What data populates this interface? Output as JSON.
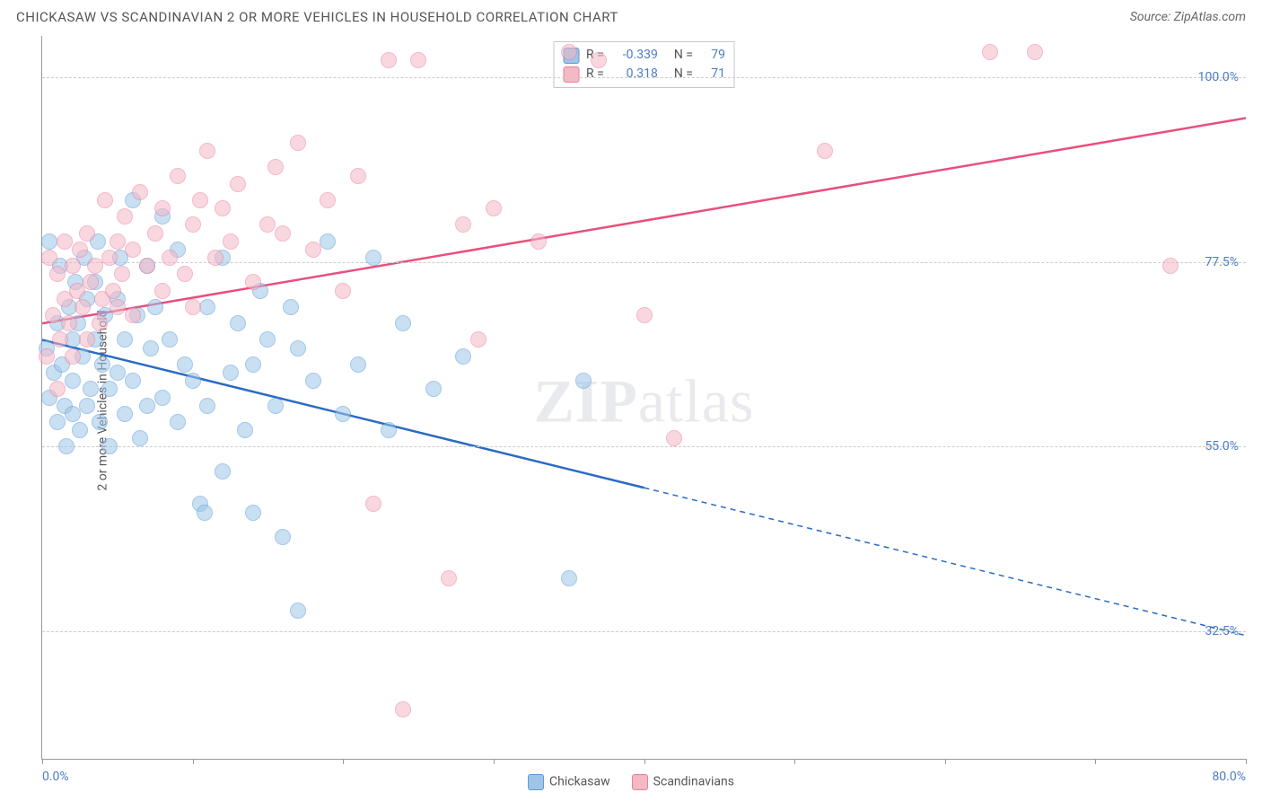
{
  "header": {
    "title": "CHICKASAW VS SCANDINAVIAN 2 OR MORE VEHICLES IN HOUSEHOLD CORRELATION CHART",
    "source": "Source: ZipAtlas.com"
  },
  "chart": {
    "type": "scatter",
    "ylabel": "2 or more Vehicles in Household",
    "xlim": [
      0,
      80
    ],
    "ylim": [
      17,
      105
    ],
    "xticks": [
      0,
      10,
      20,
      30,
      40,
      50,
      60,
      70,
      80
    ],
    "xtick_labels_shown": {
      "0": "0.0%",
      "80": "80.0%"
    },
    "yticks": [
      32.5,
      55.0,
      77.5,
      100.0
    ],
    "ytick_labels": [
      "32.5%",
      "55.0%",
      "77.5%",
      "100.0%"
    ],
    "grid_color": "#cccccc",
    "background_color": "#ffffff",
    "border_color": "#999999",
    "watermark": "ZIPatlas",
    "point_radius": 9,
    "point_opacity": 0.55,
    "series": [
      {
        "name": "Chickasaw",
        "color_fill": "#9ec5e8",
        "color_stroke": "#5a9bd5",
        "trend": {
          "color": "#2a6bc4",
          "width": 2.5,
          "x1": 0,
          "y1": 68,
          "x2": 40,
          "y2": 50,
          "x2_ext": 80,
          "y2_ext": 32,
          "dash_after_x": 40
        },
        "R": "-0.339",
        "N": "79",
        "points": [
          [
            0.3,
            67
          ],
          [
            0.5,
            61
          ],
          [
            0.5,
            80
          ],
          [
            0.8,
            64
          ],
          [
            1,
            58
          ],
          [
            1,
            70
          ],
          [
            1.2,
            77
          ],
          [
            1.3,
            65
          ],
          [
            1.5,
            60
          ],
          [
            1.6,
            55
          ],
          [
            1.8,
            72
          ],
          [
            2,
            68
          ],
          [
            2,
            63
          ],
          [
            2,
            59
          ],
          [
            2.2,
            75
          ],
          [
            2.4,
            70
          ],
          [
            2.5,
            57
          ],
          [
            2.7,
            66
          ],
          [
            2.8,
            78
          ],
          [
            3,
            60
          ],
          [
            3,
            73
          ],
          [
            3.2,
            62
          ],
          [
            3.5,
            68
          ],
          [
            3.5,
            75
          ],
          [
            3.7,
            80
          ],
          [
            3.8,
            58
          ],
          [
            4,
            65
          ],
          [
            4.2,
            71
          ],
          [
            4.5,
            62
          ],
          [
            4.5,
            55
          ],
          [
            5,
            64
          ],
          [
            5,
            73
          ],
          [
            5.2,
            78
          ],
          [
            5.5,
            59
          ],
          [
            5.5,
            68
          ],
          [
            6,
            63
          ],
          [
            6,
            85
          ],
          [
            6.3,
            71
          ],
          [
            6.5,
            56
          ],
          [
            7,
            60
          ],
          [
            7,
            77
          ],
          [
            7.2,
            67
          ],
          [
            7.5,
            72
          ],
          [
            8,
            83
          ],
          [
            8,
            61
          ],
          [
            8.5,
            68
          ],
          [
            9,
            79
          ],
          [
            9,
            58
          ],
          [
            9.5,
            65
          ],
          [
            10,
            63
          ],
          [
            10.5,
            48
          ],
          [
            10.8,
            47
          ],
          [
            11,
            72
          ],
          [
            11,
            60
          ],
          [
            12,
            78
          ],
          [
            12,
            52
          ],
          [
            12.5,
            64
          ],
          [
            13,
            70
          ],
          [
            13.5,
            57
          ],
          [
            14,
            65
          ],
          [
            14,
            47
          ],
          [
            14.5,
            74
          ],
          [
            15,
            68
          ],
          [
            15.5,
            60
          ],
          [
            16,
            44
          ],
          [
            16.5,
            72
          ],
          [
            17,
            35
          ],
          [
            17,
            67
          ],
          [
            18,
            63
          ],
          [
            19,
            80
          ],
          [
            20,
            59
          ],
          [
            21,
            65
          ],
          [
            22,
            78
          ],
          [
            23,
            57
          ],
          [
            24,
            70
          ],
          [
            26,
            62
          ],
          [
            28,
            66
          ],
          [
            35,
            39
          ],
          [
            36,
            63
          ]
        ]
      },
      {
        "name": "Scandinavians",
        "color_fill": "#f5b8c5",
        "color_stroke": "#e87fa0",
        "trend": {
          "color": "#e84f7d",
          "width": 2.5,
          "x1": 0,
          "y1": 70,
          "x2": 80,
          "y2": 95,
          "dash_after_x": 100
        },
        "R": "0.318",
        "N": "71",
        "points": [
          [
            0.3,
            66
          ],
          [
            0.5,
            78
          ],
          [
            0.7,
            71
          ],
          [
            1,
            76
          ],
          [
            1,
            62
          ],
          [
            1.2,
            68
          ],
          [
            1.5,
            80
          ],
          [
            1.5,
            73
          ],
          [
            1.8,
            70
          ],
          [
            2,
            77
          ],
          [
            2,
            66
          ],
          [
            2.3,
            74
          ],
          [
            2.5,
            79
          ],
          [
            2.7,
            72
          ],
          [
            3,
            68
          ],
          [
            3,
            81
          ],
          [
            3.2,
            75
          ],
          [
            3.5,
            77
          ],
          [
            3.8,
            70
          ],
          [
            4,
            73
          ],
          [
            4.2,
            85
          ],
          [
            4.5,
            78
          ],
          [
            4.7,
            74
          ],
          [
            5,
            80
          ],
          [
            5,
            72
          ],
          [
            5.3,
            76
          ],
          [
            5.5,
            83
          ],
          [
            6,
            79
          ],
          [
            6,
            71
          ],
          [
            6.5,
            86
          ],
          [
            7,
            77
          ],
          [
            7.5,
            81
          ],
          [
            8,
            74
          ],
          [
            8,
            84
          ],
          [
            8.5,
            78
          ],
          [
            9,
            88
          ],
          [
            9.5,
            76
          ],
          [
            10,
            82
          ],
          [
            10,
            72
          ],
          [
            10.5,
            85
          ],
          [
            11,
            91
          ],
          [
            11.5,
            78
          ],
          [
            12,
            84
          ],
          [
            12.5,
            80
          ],
          [
            13,
            87
          ],
          [
            14,
            75
          ],
          [
            15,
            82
          ],
          [
            15.5,
            89
          ],
          [
            16,
            81
          ],
          [
            17,
            92
          ],
          [
            18,
            79
          ],
          [
            19,
            85
          ],
          [
            20,
            74
          ],
          [
            21,
            88
          ],
          [
            22,
            48
          ],
          [
            23,
            102
          ],
          [
            24,
            23
          ],
          [
            25,
            102
          ],
          [
            27,
            39
          ],
          [
            28,
            82
          ],
          [
            29,
            68
          ],
          [
            30,
            84
          ],
          [
            33,
            80
          ],
          [
            35,
            103
          ],
          [
            37,
            102
          ],
          [
            40,
            71
          ],
          [
            42,
            56
          ],
          [
            52,
            91
          ],
          [
            63,
            103
          ],
          [
            66,
            103
          ],
          [
            75,
            77
          ]
        ]
      }
    ],
    "legend_top": {
      "rows": [
        {
          "swatch": 0,
          "r_label": "R =",
          "r_val": "-0.339",
          "n_label": "N =",
          "n_val": "79"
        },
        {
          "swatch": 1,
          "r_label": "R =",
          "r_val": "0.318",
          "n_label": "N =",
          "n_val": "71"
        }
      ]
    },
    "legend_bottom": [
      {
        "swatch": 0,
        "label": "Chickasaw"
      },
      {
        "swatch": 1,
        "label": "Scandinavians"
      }
    ]
  }
}
